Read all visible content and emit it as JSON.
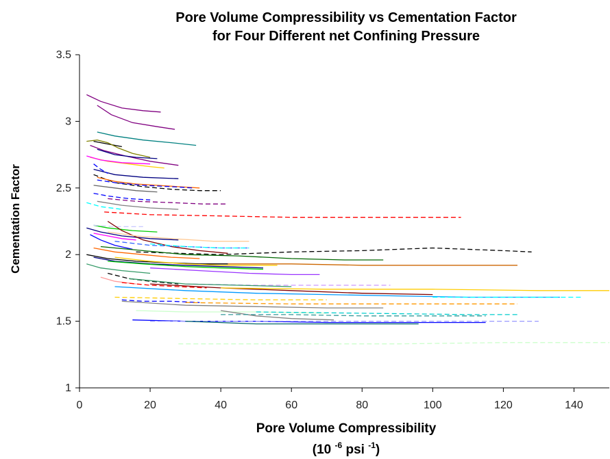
{
  "chart_data": {
    "type": "line",
    "title_line1": "Pore Volume Compressibility vs Cementation Factor",
    "title_line2": "for Four Different net Confining Pressure",
    "xlabel": "Pore Volume Compressibility",
    "xunit": {
      "open": "(10 ",
      "exp1": "-6",
      "mid": " psi ",
      "exp2": "-1",
      "close": ")"
    },
    "ylabel": "Cementation Factor",
    "xlim": [
      0,
      150
    ],
    "ylim": [
      1,
      3.5
    ],
    "xticks": [
      "0",
      "20",
      "40",
      "60",
      "80",
      "100",
      "120",
      "140"
    ],
    "yticks": [
      "1",
      "1.5",
      "2",
      "2.5",
      "3",
      "3.5"
    ],
    "grid": false,
    "legend": "none",
    "series": [
      {
        "color": "#800080",
        "dash": "solid",
        "x": [
          2,
          6,
          12,
          18,
          23
        ],
        "y": [
          3.2,
          3.15,
          3.1,
          3.08,
          3.07
        ]
      },
      {
        "color": "#800080",
        "dash": "solid",
        "x": [
          5,
          9,
          15,
          22,
          27
        ],
        "y": [
          3.12,
          3.05,
          2.99,
          2.96,
          2.94
        ]
      },
      {
        "color": "#008080",
        "dash": "solid",
        "x": [
          5,
          10,
          18,
          26,
          33
        ],
        "y": [
          2.92,
          2.89,
          2.86,
          2.84,
          2.82
        ]
      },
      {
        "color": "#000000",
        "dash": "solid",
        "x": [
          4,
          8,
          12
        ],
        "y": [
          2.85,
          2.83,
          2.81
        ]
      },
      {
        "color": "#808000",
        "dash": "solid",
        "x": [
          2,
          5,
          8,
          11,
          15,
          20
        ],
        "y": [
          2.85,
          2.86,
          2.84,
          2.8,
          2.76,
          2.73
        ]
      },
      {
        "color": "#800080",
        "dash": "solid",
        "x": [
          3,
          7,
          13,
          20,
          28
        ],
        "y": [
          2.82,
          2.78,
          2.74,
          2.7,
          2.67
        ]
      },
      {
        "color": "#000080",
        "dash": "solid",
        "x": [
          5,
          10,
          16,
          22
        ],
        "y": [
          2.79,
          2.75,
          2.73,
          2.72
        ]
      },
      {
        "color": "#ffcc00",
        "dash": "solid",
        "x": [
          3,
          8,
          14,
          20,
          24
        ],
        "y": [
          2.73,
          2.7,
          2.68,
          2.66,
          2.65
        ]
      },
      {
        "color": "#ff00ff",
        "dash": "solid",
        "x": [
          2,
          6,
          12,
          20
        ],
        "y": [
          2.74,
          2.71,
          2.69,
          2.68
        ]
      },
      {
        "color": "#000080",
        "dash": "solid",
        "x": [
          4,
          10,
          18,
          28
        ],
        "y": [
          2.64,
          2.6,
          2.58,
          2.57
        ]
      },
      {
        "color": "#0000ff",
        "dash": "dashed",
        "x": [
          4,
          6,
          8
        ],
        "y": [
          2.68,
          2.64,
          2.61
        ]
      },
      {
        "color": "#000000",
        "dash": "dashed",
        "x": [
          4,
          10,
          18,
          26,
          34,
          40
        ],
        "y": [
          2.6,
          2.54,
          2.51,
          2.49,
          2.48,
          2.48
        ]
      },
      {
        "color": "#ff6600",
        "dash": "solid",
        "x": [
          5,
          10,
          16,
          22,
          28,
          34
        ],
        "y": [
          2.58,
          2.55,
          2.53,
          2.52,
          2.51,
          2.5
        ]
      },
      {
        "color": "#0000ff",
        "dash": "dashed",
        "x": [
          5,
          10,
          18,
          26,
          32
        ],
        "y": [
          2.56,
          2.54,
          2.52,
          2.51,
          2.5
        ]
      },
      {
        "color": "#666666",
        "dash": "solid",
        "x": [
          4,
          10,
          16,
          22
        ],
        "y": [
          2.52,
          2.5,
          2.48,
          2.47
        ]
      },
      {
        "color": "#0000ff",
        "dash": "dashed",
        "x": [
          4,
          8,
          14,
          20
        ],
        "y": [
          2.46,
          2.44,
          2.42,
          2.41
        ]
      },
      {
        "color": "#800080",
        "dash": "dashed",
        "x": [
          8,
          16,
          26,
          35,
          42
        ],
        "y": [
          2.42,
          2.4,
          2.39,
          2.38,
          2.38
        ]
      },
      {
        "color": "#808080",
        "dash": "solid",
        "x": [
          5,
          12,
          20,
          28
        ],
        "y": [
          2.4,
          2.37,
          2.35,
          2.34
        ]
      },
      {
        "color": "#00ffff",
        "dash": "dashed",
        "x": [
          2,
          6,
          12
        ],
        "y": [
          2.39,
          2.36,
          2.34
        ]
      },
      {
        "color": "#ff0000",
        "dash": "dashed",
        "x": [
          7,
          20,
          40,
          60,
          80,
          100,
          108
        ],
        "y": [
          2.32,
          2.3,
          2.29,
          2.28,
          2.28,
          2.28,
          2.28
        ]
      },
      {
        "color": "#00cc00",
        "dash": "solid",
        "x": [
          4,
          8,
          15,
          22
        ],
        "y": [
          2.22,
          2.2,
          2.18,
          2.17
        ]
      },
      {
        "color": "#ccccff",
        "dash": "dashed",
        "x": [
          4,
          10,
          18
        ],
        "y": [
          2.22,
          2.21,
          2.21
        ]
      },
      {
        "color": "#000080",
        "dash": "solid",
        "x": [
          2,
          6,
          12,
          20,
          28
        ],
        "y": [
          2.2,
          2.17,
          2.14,
          2.12,
          2.11
        ]
      },
      {
        "color": "#800000",
        "dash": "solid",
        "x": [
          8,
          12,
          18,
          26,
          34,
          42
        ],
        "y": [
          2.25,
          2.18,
          2.11,
          2.06,
          2.03,
          2.01
        ]
      },
      {
        "color": "#ff00ff",
        "dash": "solid",
        "x": [
          4,
          8,
          12,
          16
        ],
        "y": [
          2.16,
          2.14,
          2.12,
          2.11
        ]
      },
      {
        "color": "#ffcc99",
        "dash": "solid",
        "x": [
          8,
          16,
          26,
          38,
          48
        ],
        "y": [
          2.17,
          2.14,
          2.12,
          2.1,
          2.1
        ]
      },
      {
        "color": "#0000ff",
        "dash": "solid",
        "x": [
          3,
          6,
          10,
          15
        ],
        "y": [
          2.15,
          2.11,
          2.07,
          2.04
        ]
      },
      {
        "color": "#3366ff",
        "dash": "dashed",
        "x": [
          10,
          20,
          30,
          40,
          48
        ],
        "y": [
          2.1,
          2.07,
          2.06,
          2.05,
          2.05
        ]
      },
      {
        "color": "#00ffff",
        "dash": "dashed",
        "x": [
          20,
          30,
          40,
          48
        ],
        "y": [
          2.08,
          2.06,
          2.05,
          2.05
        ]
      },
      {
        "color": "#ff6600",
        "dash": "solid",
        "x": [
          4,
          10,
          18,
          26,
          34
        ],
        "y": [
          2.05,
          2.02,
          2.0,
          1.98,
          1.97
        ]
      },
      {
        "color": "#000000",
        "dash": "dashed",
        "x": [
          16,
          40,
          60,
          80,
          100,
          120,
          128
        ],
        "y": [
          2.02,
          2.0,
          2.02,
          2.03,
          2.05,
          2.03,
          2.02
        ]
      },
      {
        "color": "#006600",
        "dash": "solid",
        "x": [
          6,
          18,
          30,
          45,
          60,
          75,
          86
        ],
        "y": [
          2.06,
          2.03,
          2.0,
          1.99,
          1.97,
          1.96,
          1.96
        ]
      },
      {
        "color": "#cc6600",
        "dash": "solid",
        "x": [
          36,
          60,
          80,
          100,
          124
        ],
        "y": [
          1.93,
          1.93,
          1.92,
          1.92,
          1.92
        ]
      },
      {
        "color": "#000000",
        "dash": "solid",
        "x": [
          2,
          8,
          16,
          24,
          34,
          42
        ],
        "y": [
          2.0,
          1.97,
          1.95,
          1.94,
          1.93,
          1.93
        ]
      },
      {
        "color": "#000080",
        "dash": "solid",
        "x": [
          4,
          10,
          20,
          30,
          40,
          52
        ],
        "y": [
          1.98,
          1.95,
          1.93,
          1.92,
          1.91,
          1.9
        ]
      },
      {
        "color": "#ffcc00",
        "dash": "solid",
        "x": [
          10,
          20,
          30,
          40,
          50,
          56
        ],
        "y": [
          1.98,
          1.95,
          1.93,
          1.92,
          1.92,
          1.92
        ]
      },
      {
        "color": "#00cc00",
        "dash": "solid",
        "x": [
          8,
          18,
          30,
          40,
          52
        ],
        "y": [
          1.95,
          1.93,
          1.91,
          1.9,
          1.89
        ]
      },
      {
        "color": "#9933ff",
        "dash": "solid",
        "x": [
          20,
          34,
          48,
          60,
          68
        ],
        "y": [
          1.9,
          1.88,
          1.86,
          1.85,
          1.85
        ]
      },
      {
        "color": "#339966",
        "dash": "solid",
        "x": [
          2,
          6,
          12,
          20
        ],
        "y": [
          1.93,
          1.9,
          1.88,
          1.86
        ]
      },
      {
        "color": "#000000",
        "dash": "dashed",
        "x": [
          8,
          14,
          20,
          28
        ],
        "y": [
          1.86,
          1.82,
          1.8,
          1.78
        ]
      },
      {
        "color": "#ff9999",
        "dash": "solid",
        "x": [
          6,
          10,
          16
        ],
        "y": [
          1.83,
          1.8,
          1.78
        ]
      },
      {
        "color": "#cc99ff",
        "dash": "dashed",
        "x": [
          30,
          50,
          70,
          88
        ],
        "y": [
          1.78,
          1.77,
          1.77,
          1.77
        ]
      },
      {
        "color": "#339966",
        "dash": "solid",
        "x": [
          14,
          30,
          45,
          60
        ],
        "y": [
          1.82,
          1.78,
          1.77,
          1.76
        ]
      },
      {
        "color": "#ff0000",
        "dash": "dashed",
        "x": [
          12,
          20,
          28,
          36
        ],
        "y": [
          1.79,
          1.77,
          1.76,
          1.75
        ]
      },
      {
        "color": "#800000",
        "dash": "solid",
        "x": [
          20,
          40,
          60,
          80,
          100
        ],
        "y": [
          1.78,
          1.75,
          1.73,
          1.71,
          1.7
        ]
      },
      {
        "color": "#ffcc00",
        "dash": "solid",
        "x": [
          40,
          70,
          100,
          130,
          150
        ],
        "y": [
          1.75,
          1.74,
          1.74,
          1.73,
          1.73
        ]
      },
      {
        "color": "#0099ff",
        "dash": "solid",
        "x": [
          10,
          30,
          50,
          70,
          90,
          110,
          136
        ],
        "y": [
          1.76,
          1.73,
          1.71,
          1.7,
          1.69,
          1.68,
          1.68
        ]
      },
      {
        "color": "#00ffff",
        "dash": "dashed",
        "x": [
          100,
          120,
          142
        ],
        "y": [
          1.68,
          1.68,
          1.68
        ]
      },
      {
        "color": "#ffcc00",
        "dash": "dashed",
        "x": [
          10,
          30,
          50,
          70
        ],
        "y": [
          1.68,
          1.67,
          1.66,
          1.66
        ]
      },
      {
        "color": "#0000ff",
        "dash": "dashed",
        "x": [
          12,
          18,
          26,
          34
        ],
        "y": [
          1.66,
          1.65,
          1.65,
          1.64
        ]
      },
      {
        "color": "#ff9900",
        "dash": "dashed",
        "x": [
          30,
          60,
          90,
          124
        ],
        "y": [
          1.64,
          1.63,
          1.63,
          1.63
        ]
      },
      {
        "color": "#808080",
        "dash": "solid",
        "x": [
          12,
          30,
          50,
          70,
          86
        ],
        "y": [
          1.65,
          1.62,
          1.61,
          1.6,
          1.6
        ]
      },
      {
        "color": "#ccffcc",
        "dash": "solid",
        "x": [
          16,
          30,
          50,
          70
        ],
        "y": [
          1.58,
          1.57,
          1.57,
          1.56
        ]
      },
      {
        "color": "#808080",
        "dash": "solid",
        "x": [
          40,
          50,
          60,
          72
        ],
        "y": [
          1.58,
          1.54,
          1.52,
          1.51
        ]
      },
      {
        "color": "#00cccc",
        "dash": "dashed",
        "x": [
          50,
          80,
          110,
          124
        ],
        "y": [
          1.57,
          1.56,
          1.55,
          1.55
        ]
      },
      {
        "color": "#339999",
        "dash": "dashed",
        "x": [
          40,
          60,
          80,
          115
        ],
        "y": [
          1.55,
          1.55,
          1.54,
          1.54
        ]
      },
      {
        "color": "#0000ff",
        "dash": "solid",
        "x": [
          15,
          30,
          50,
          70,
          90,
          115
        ],
        "y": [
          1.51,
          1.5,
          1.5,
          1.49,
          1.49,
          1.49
        ]
      },
      {
        "color": "#9999ff",
        "dash": "dashed",
        "x": [
          20,
          50,
          80,
          110,
          130
        ],
        "y": [
          1.5,
          1.5,
          1.5,
          1.5,
          1.5
        ]
      },
      {
        "color": "#006666",
        "dash": "solid",
        "x": [
          30,
          50,
          70,
          96
        ],
        "y": [
          1.5,
          1.48,
          1.48,
          1.48
        ]
      },
      {
        "color": "#ccffcc",
        "dash": "dashed",
        "x": [
          28,
          60,
          90,
          120,
          150
        ],
        "y": [
          1.33,
          1.33,
          1.33,
          1.34,
          1.34
        ]
      }
    ]
  }
}
